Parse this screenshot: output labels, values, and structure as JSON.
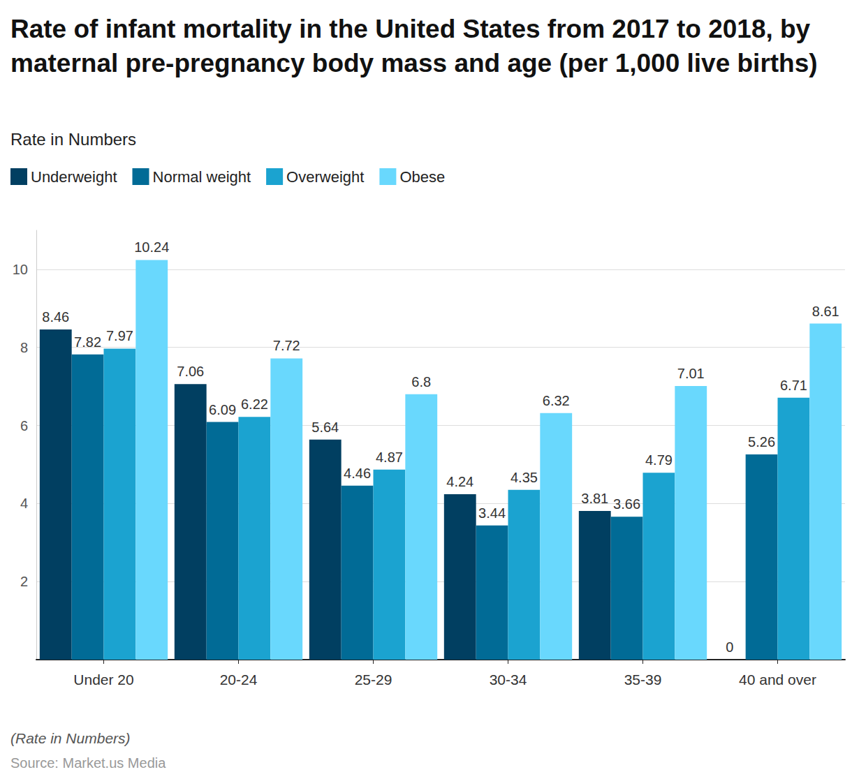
{
  "chart_data": {
    "type": "bar",
    "title": "Rate of infant mortality in the United States from 2017 to 2018, by maternal pre-pregnancy body mass and age (per 1,000 live births)",
    "subtitle": "Rate in Numbers",
    "note": "(Rate in Numbers)",
    "source": "Source: Market.us Media",
    "categories": [
      "Under 20",
      "20-24",
      "25-29",
      "30-34",
      "35-39",
      "40 and over"
    ],
    "series": [
      {
        "name": "Underweight",
        "color": "#013f61",
        "values": [
          8.46,
          7.06,
          5.64,
          4.24,
          3.81,
          0
        ]
      },
      {
        "name": "Normal weight",
        "color": "#016b96",
        "values": [
          7.82,
          6.09,
          4.46,
          3.44,
          3.66,
          5.26
        ]
      },
      {
        "name": "Overweight",
        "color": "#1ba3d0",
        "values": [
          7.97,
          6.22,
          4.87,
          4.35,
          4.79,
          6.71
        ]
      },
      {
        "name": "Obese",
        "color": "#69d8fd",
        "values": [
          10.24,
          7.72,
          6.8,
          6.32,
          7.01,
          8.61
        ]
      }
    ],
    "ylim": [
      0,
      11
    ],
    "yticks": [
      2,
      4,
      6,
      8,
      10
    ],
    "grid": true,
    "legend": "top-left",
    "data_labels": true
  }
}
